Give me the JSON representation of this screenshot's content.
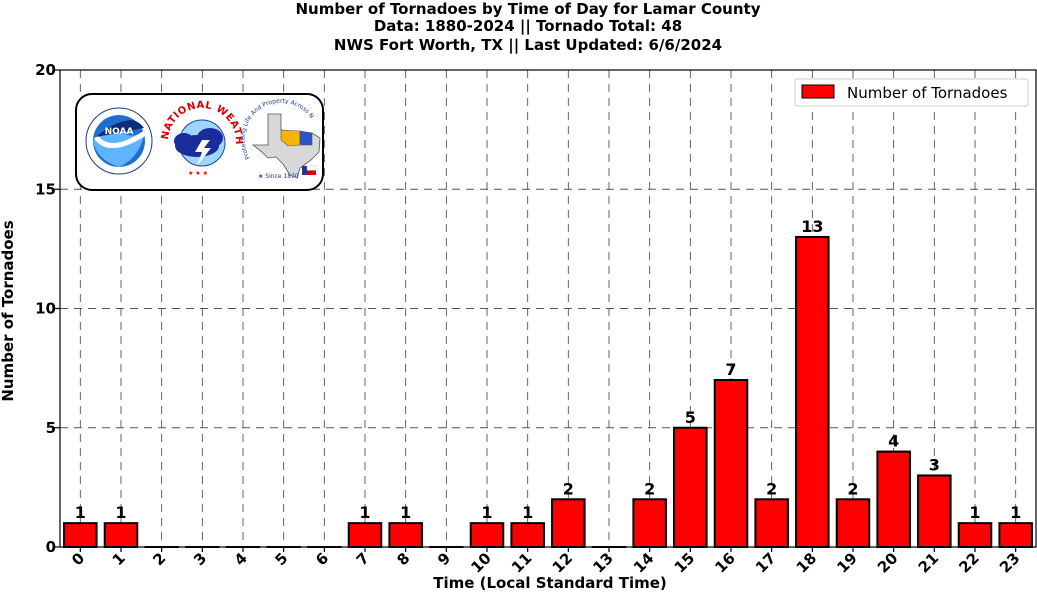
{
  "chart_data": {
    "type": "bar",
    "title": [
      "Number of Tornadoes by Time of Day for Lamar County",
      "Data: 1880-2024 || Tornado Total: 48",
      "NWS Fort Worth, TX || Last Updated: 6/6/2024"
    ],
    "xlabel": "Time (Local Standard Time)",
    "ylabel": "Number of Tornadoes",
    "categories": [
      "0",
      "1",
      "2",
      "3",
      "4",
      "5",
      "6",
      "7",
      "8",
      "9",
      "10",
      "11",
      "12",
      "13",
      "14",
      "15",
      "16",
      "17",
      "18",
      "19",
      "20",
      "21",
      "22",
      "23"
    ],
    "series": [
      {
        "name": "Number of Tornadoes",
        "color": "#ff0000",
        "values": [
          1,
          1,
          0,
          0,
          0,
          0,
          0,
          1,
          1,
          0,
          1,
          1,
          2,
          0,
          2,
          5,
          7,
          2,
          13,
          2,
          4,
          3,
          1,
          1
        ]
      }
    ],
    "ylim": [
      0,
      20
    ],
    "yticks": [
      "0",
      "5",
      "10",
      "15",
      "20"
    ],
    "grid": true,
    "legend_position": "top-right",
    "data_labels": "above bars, omitted for zero values"
  },
  "logos": {
    "noaa_text": "NOAA",
    "nws_text": "NATIONAL WEATHER SERVICE",
    "fort_worth_text": "Protecting Life And Property Across North Texas",
    "since_text": "★ Since 1870"
  }
}
